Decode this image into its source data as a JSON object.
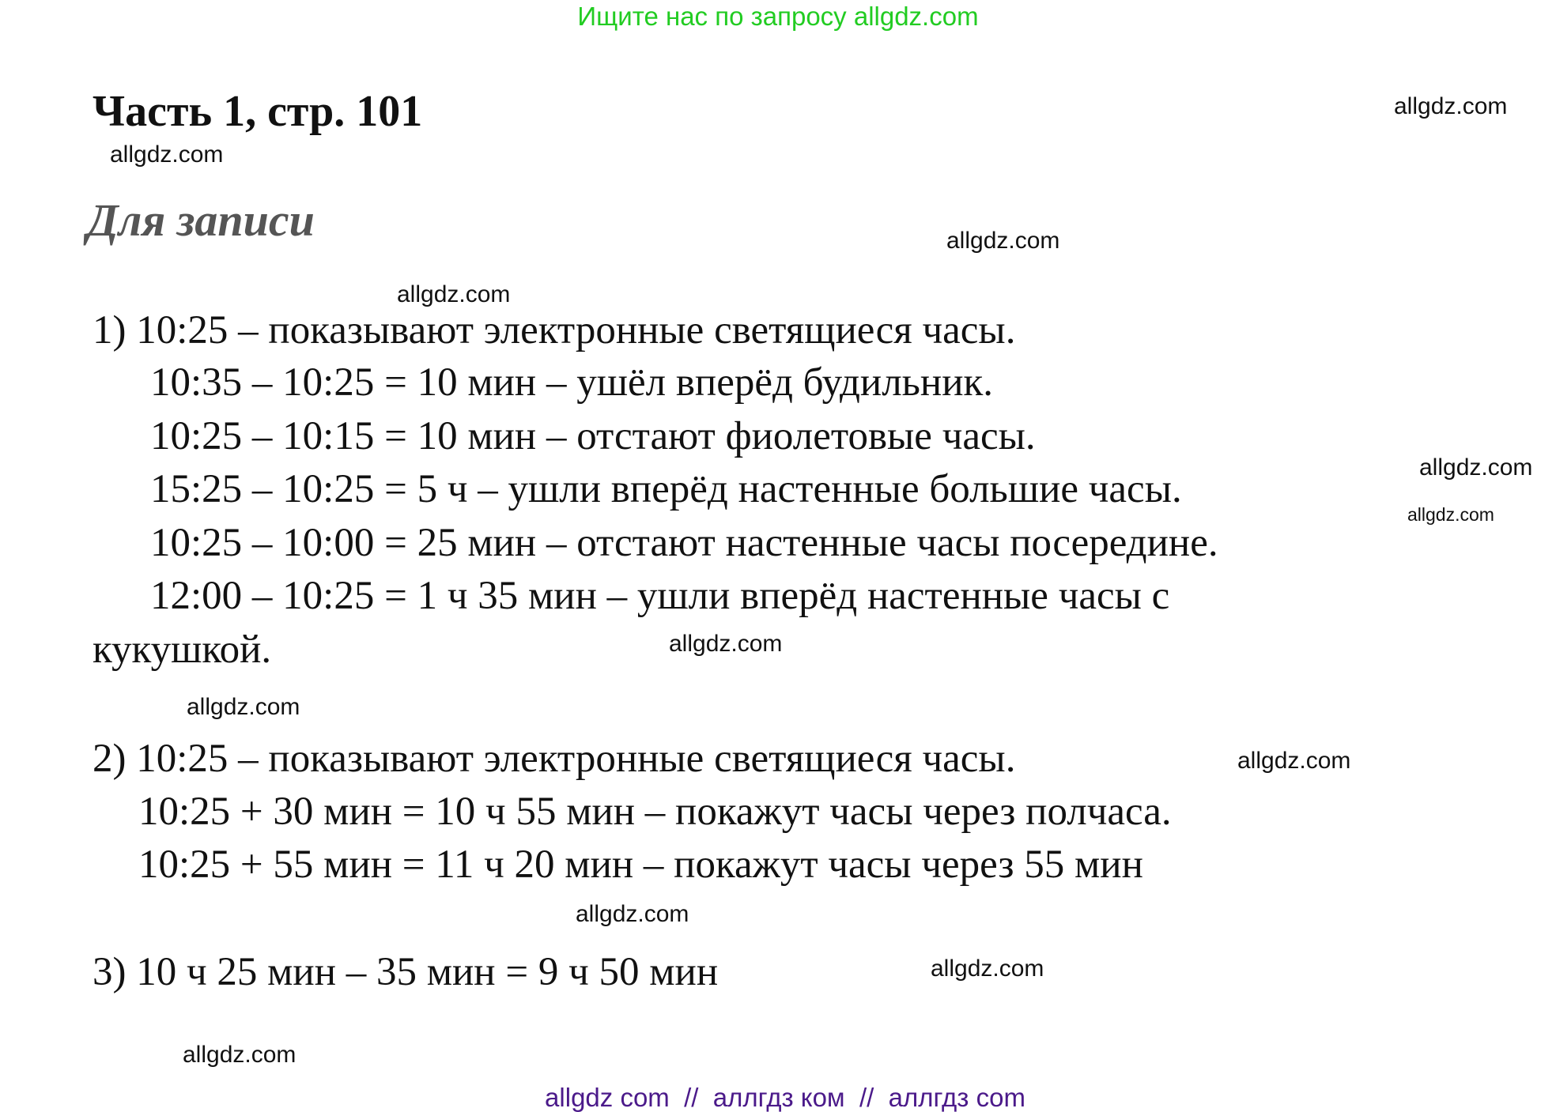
{
  "banner": "Ищите нас по запросу allgdz.com",
  "title": "Часть 1, стр. 101",
  "subtitle": "Для записи",
  "section1": [
    "1) 10:25 – показывают электронные светящиеся часы.",
    "10:35 – 10:25 = 10 мин – ушёл вперёд будильник.",
    "10:25 – 10:15 = 10 мин – отстают фиолетовые часы.",
    "15:25 – 10:25 = 5 ч – ушли вперёд настенные большие часы.",
    "10:25 – 10:00 = 25 мин – отстают настенные часы посередине.",
    "12:00 – 10:25 = 1 ч 35 мин – ушли вперёд настенные часы с",
    "кукушкой."
  ],
  "section2": [
    "2) 10:25 – показывают электронные светящиеся часы.",
    "10:25 + 30 мин = 10 ч 55 мин – покажут часы через полчаса.",
    "10:25 + 55 мин = 11 ч 20 мин – покажут часы через 55 мин"
  ],
  "section3": [
    "3) 10 ч 25 мин – 35 мин = 9 ч 50 мин"
  ],
  "watermark": "allgdz.com",
  "footer": "allgdz com  //  аллгдз ком  //  аллгдз com",
  "colors": {
    "banner": "#22cc22",
    "footer": "#4b1a8a",
    "subtitle": "#555555"
  }
}
